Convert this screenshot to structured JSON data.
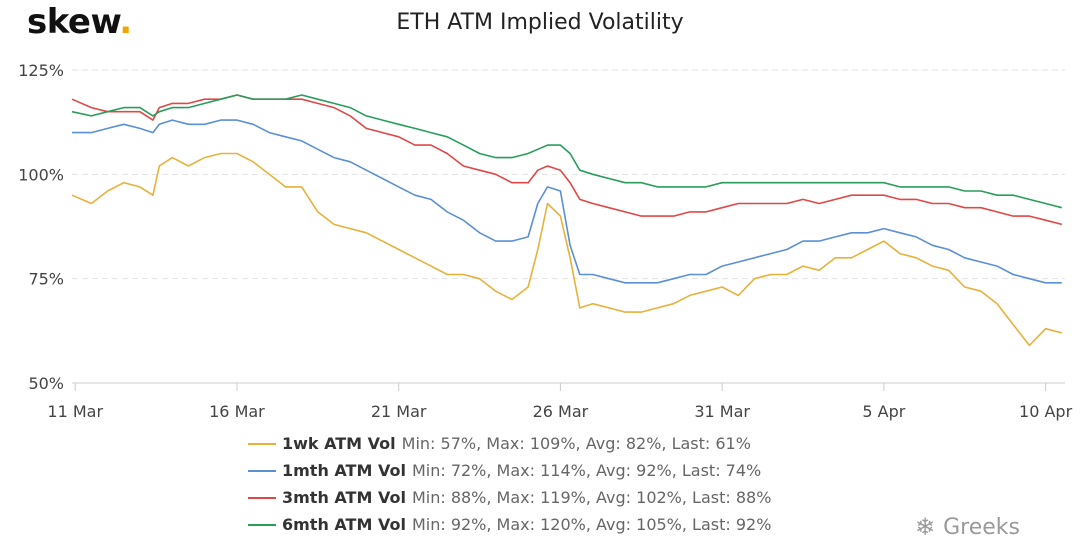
{
  "logo": {
    "text": "skew",
    "dot": "."
  },
  "watermark": {
    "text": "Greeks",
    "icon": "wechat-icon"
  },
  "colors": {
    "1wk": "#e8b13a",
    "1mth": "#5b8fd6",
    "3mth": "#e04848",
    "6mth": "#2a9d5c",
    "grid": "#e2e2e2",
    "axis": "#cccccc"
  },
  "chart_data": {
    "type": "line",
    "title": "ETH ATM Implied Volatility",
    "xlabel": "",
    "ylabel": "",
    "x_ticks": [
      "11 Mar",
      "16 Mar",
      "21 Mar",
      "26 Mar",
      "31 Mar",
      "5 Apr",
      "10 Apr"
    ],
    "x_tick_days": [
      11,
      16,
      21,
      26,
      31,
      36,
      41
    ],
    "xlim_days": [
      10.9,
      41.6
    ],
    "y_ticks": [
      "50%",
      "75%",
      "100%",
      "125%"
    ],
    "y_tick_values": [
      50,
      75,
      100,
      125
    ],
    "ylim": [
      50,
      125
    ],
    "grid": true,
    "legend_position": "bottom",
    "x_days": [
      10.9,
      11.5,
      12,
      12.5,
      13,
      13.4,
      13.6,
      14,
      14.5,
      15,
      15.5,
      16,
      16.5,
      17,
      17.5,
      18,
      18.5,
      19,
      19.5,
      20,
      20.5,
      21,
      21.5,
      22,
      22.5,
      23,
      23.5,
      24,
      24.5,
      25,
      25.3,
      25.6,
      26,
      26.3,
      26.6,
      27,
      27.5,
      28,
      28.5,
      29,
      29.5,
      30,
      30.5,
      31,
      31.5,
      32,
      32.5,
      33,
      33.5,
      34,
      34.5,
      35,
      35.5,
      36,
      36.5,
      37,
      37.5,
      38,
      38.5,
      39,
      39.5,
      40,
      40.5,
      41,
      41.5
    ],
    "series": [
      {
        "key": "1wk",
        "name": "1wk ATM Vol",
        "stats": "Min: 57%, Max: 109%, Avg: 82%, Last: 61%",
        "values": [
          95,
          93,
          96,
          98,
          97,
          95,
          102,
          104,
          102,
          104,
          105,
          105,
          103,
          100,
          97,
          97,
          91,
          88,
          87,
          86,
          84,
          82,
          80,
          78,
          76,
          76,
          75,
          72,
          70,
          73,
          82,
          93,
          90,
          80,
          68,
          69,
          68,
          67,
          67,
          68,
          69,
          71,
          72,
          73,
          71,
          75,
          76,
          76,
          78,
          77,
          80,
          80,
          82,
          84,
          81,
          80,
          78,
          77,
          73,
          72,
          69,
          64,
          59,
          63,
          62
        ]
      },
      {
        "key": "1mth",
        "name": "1mth ATM Vol",
        "stats": "Min: 72%, Max: 114%, Avg: 92%, Last: 74%",
        "values": [
          110,
          110,
          111,
          112,
          111,
          110,
          112,
          113,
          112,
          112,
          113,
          113,
          112,
          110,
          109,
          108,
          106,
          104,
          103,
          101,
          99,
          97,
          95,
          94,
          91,
          89,
          86,
          84,
          84,
          85,
          93,
          97,
          96,
          83,
          76,
          76,
          75,
          74,
          74,
          74,
          75,
          76,
          76,
          78,
          79,
          80,
          81,
          82,
          84,
          84,
          85,
          86,
          86,
          87,
          86,
          85,
          83,
          82,
          80,
          79,
          78,
          76,
          75,
          74,
          74
        ]
      },
      {
        "key": "3mth",
        "name": "3mth ATM Vol",
        "stats": "Min: 88%, Max: 119%, Avg: 102%, Last: 88%",
        "values": [
          118,
          116,
          115,
          115,
          115,
          113,
          116,
          117,
          117,
          118,
          118,
          119,
          118,
          118,
          118,
          118,
          117,
          116,
          114,
          111,
          110,
          109,
          107,
          107,
          105,
          102,
          101,
          100,
          98,
          98,
          101,
          102,
          101,
          98,
          94,
          93,
          92,
          91,
          90,
          90,
          90,
          91,
          91,
          92,
          93,
          93,
          93,
          93,
          94,
          93,
          94,
          95,
          95,
          95,
          94,
          94,
          93,
          93,
          92,
          92,
          91,
          90,
          90,
          89,
          88
        ]
      },
      {
        "key": "6mth",
        "name": "6mth ATM Vol",
        "stats": "Min: 92%, Max: 120%, Avg: 105%, Last: 92%",
        "values": [
          115,
          114,
          115,
          116,
          116,
          114,
          115,
          116,
          116,
          117,
          118,
          119,
          118,
          118,
          118,
          119,
          118,
          117,
          116,
          114,
          113,
          112,
          111,
          110,
          109,
          107,
          105,
          104,
          104,
          105,
          106,
          107,
          107,
          105,
          101,
          100,
          99,
          98,
          98,
          97,
          97,
          97,
          97,
          98,
          98,
          98,
          98,
          98,
          98,
          98,
          98,
          98,
          98,
          98,
          97,
          97,
          97,
          97,
          96,
          96,
          95,
          95,
          94,
          93,
          92
        ]
      }
    ]
  }
}
